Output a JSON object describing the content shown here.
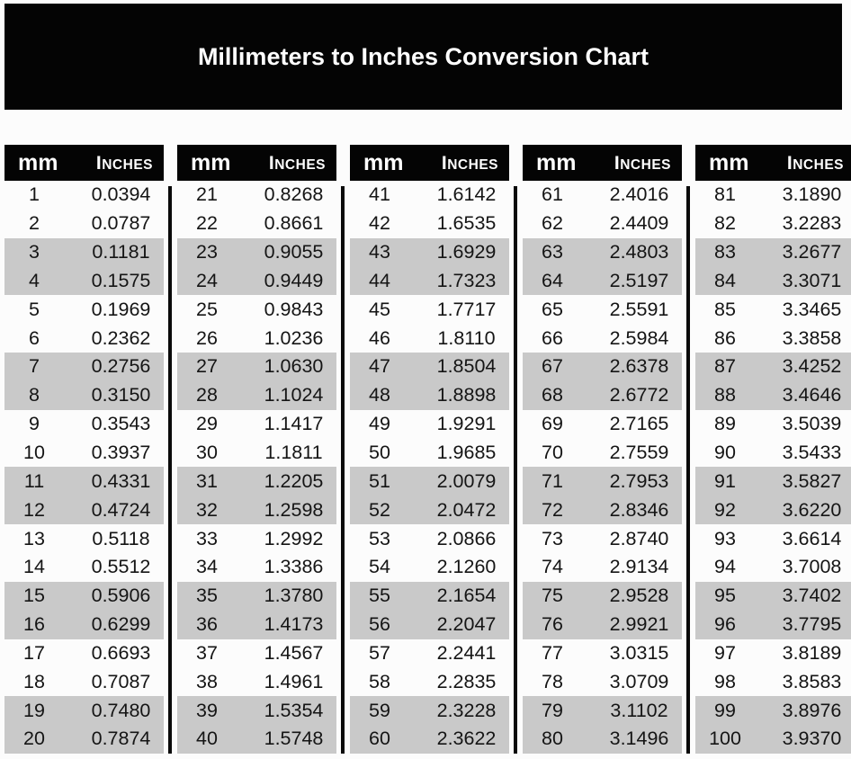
{
  "chart_data": {
    "type": "table",
    "title": "Millimeters to Inches Conversion Chart",
    "column_headers": {
      "mm": "mm",
      "inches": "Inches"
    },
    "layout": {
      "column_groups": 5,
      "rows_per_group": 20,
      "row_shading": "alternating pairs of rows shaded (rows 3-4, 7-8, 11-12, 15-16, 19-20 of each group)",
      "legend": "none",
      "grid": "off"
    },
    "colors": {
      "title_bar_bg": "#040404",
      "header_bg": "#040404",
      "header_text": "#ffffff",
      "shaded_row_bg": "#c9c9c9",
      "body_text": "#151515",
      "separator": "#0a0a0a",
      "page_bg": "#fcfcfc"
    },
    "groups": [
      {
        "rows": [
          [
            "1",
            "0.0394"
          ],
          [
            "2",
            "0.0787"
          ],
          [
            "3",
            "0.1181"
          ],
          [
            "4",
            "0.1575"
          ],
          [
            "5",
            "0.1969"
          ],
          [
            "6",
            "0.2362"
          ],
          [
            "7",
            "0.2756"
          ],
          [
            "8",
            "0.3150"
          ],
          [
            "9",
            "0.3543"
          ],
          [
            "10",
            "0.3937"
          ],
          [
            "11",
            "0.4331"
          ],
          [
            "12",
            "0.4724"
          ],
          [
            "13",
            "0.5118"
          ],
          [
            "14",
            "0.5512"
          ],
          [
            "15",
            "0.5906"
          ],
          [
            "16",
            "0.6299"
          ],
          [
            "17",
            "0.6693"
          ],
          [
            "18",
            "0.7087"
          ],
          [
            "19",
            "0.7480"
          ],
          [
            "20",
            "0.7874"
          ]
        ]
      },
      {
        "rows": [
          [
            "21",
            "0.8268"
          ],
          [
            "22",
            "0.8661"
          ],
          [
            "23",
            "0.9055"
          ],
          [
            "24",
            "0.9449"
          ],
          [
            "25",
            "0.9843"
          ],
          [
            "26",
            "1.0236"
          ],
          [
            "27",
            "1.0630"
          ],
          [
            "28",
            "1.1024"
          ],
          [
            "29",
            "1.1417"
          ],
          [
            "30",
            "1.1811"
          ],
          [
            "31",
            "1.2205"
          ],
          [
            "32",
            "1.2598"
          ],
          [
            "33",
            "1.2992"
          ],
          [
            "34",
            "1.3386"
          ],
          [
            "35",
            "1.3780"
          ],
          [
            "36",
            "1.4173"
          ],
          [
            "37",
            "1.4567"
          ],
          [
            "38",
            "1.4961"
          ],
          [
            "39",
            "1.5354"
          ],
          [
            "40",
            "1.5748"
          ]
        ]
      },
      {
        "rows": [
          [
            "41",
            "1.6142"
          ],
          [
            "42",
            "1.6535"
          ],
          [
            "43",
            "1.6929"
          ],
          [
            "44",
            "1.7323"
          ],
          [
            "45",
            "1.7717"
          ],
          [
            "46",
            "1.8110"
          ],
          [
            "47",
            "1.8504"
          ],
          [
            "48",
            "1.8898"
          ],
          [
            "49",
            "1.9291"
          ],
          [
            "50",
            "1.9685"
          ],
          [
            "51",
            "2.0079"
          ],
          [
            "52",
            "2.0472"
          ],
          [
            "53",
            "2.0866"
          ],
          [
            "54",
            "2.1260"
          ],
          [
            "55",
            "2.1654"
          ],
          [
            "56",
            "2.2047"
          ],
          [
            "57",
            "2.2441"
          ],
          [
            "58",
            "2.2835"
          ],
          [
            "59",
            "2.3228"
          ],
          [
            "60",
            "2.3622"
          ]
        ]
      },
      {
        "rows": [
          [
            "61",
            "2.4016"
          ],
          [
            "62",
            "2.4409"
          ],
          [
            "63",
            "2.4803"
          ],
          [
            "64",
            "2.5197"
          ],
          [
            "65",
            "2.5591"
          ],
          [
            "66",
            "2.5984"
          ],
          [
            "67",
            "2.6378"
          ],
          [
            "68",
            "2.6772"
          ],
          [
            "69",
            "2.7165"
          ],
          [
            "70",
            "2.7559"
          ],
          [
            "71",
            "2.7953"
          ],
          [
            "72",
            "2.8346"
          ],
          [
            "73",
            "2.8740"
          ],
          [
            "74",
            "2.9134"
          ],
          [
            "75",
            "2.9528"
          ],
          [
            "76",
            "2.9921"
          ],
          [
            "77",
            "3.0315"
          ],
          [
            "78",
            "3.0709"
          ],
          [
            "79",
            "3.1102"
          ],
          [
            "80",
            "3.1496"
          ]
        ]
      },
      {
        "rows": [
          [
            "81",
            "3.1890"
          ],
          [
            "82",
            "3.2283"
          ],
          [
            "83",
            "3.2677"
          ],
          [
            "84",
            "3.3071"
          ],
          [
            "85",
            "3.3465"
          ],
          [
            "86",
            "3.3858"
          ],
          [
            "87",
            "3.4252"
          ],
          [
            "88",
            "3.4646"
          ],
          [
            "89",
            "3.5039"
          ],
          [
            "90",
            "3.5433"
          ],
          [
            "91",
            "3.5827"
          ],
          [
            "92",
            "3.6220"
          ],
          [
            "93",
            "3.6614"
          ],
          [
            "94",
            "3.7008"
          ],
          [
            "95",
            "3.7402"
          ],
          [
            "96",
            "3.7795"
          ],
          [
            "97",
            "3.8189"
          ],
          [
            "98",
            "3.8583"
          ],
          [
            "99",
            "3.8976"
          ],
          [
            "100",
            "3.9370"
          ]
        ]
      }
    ]
  }
}
